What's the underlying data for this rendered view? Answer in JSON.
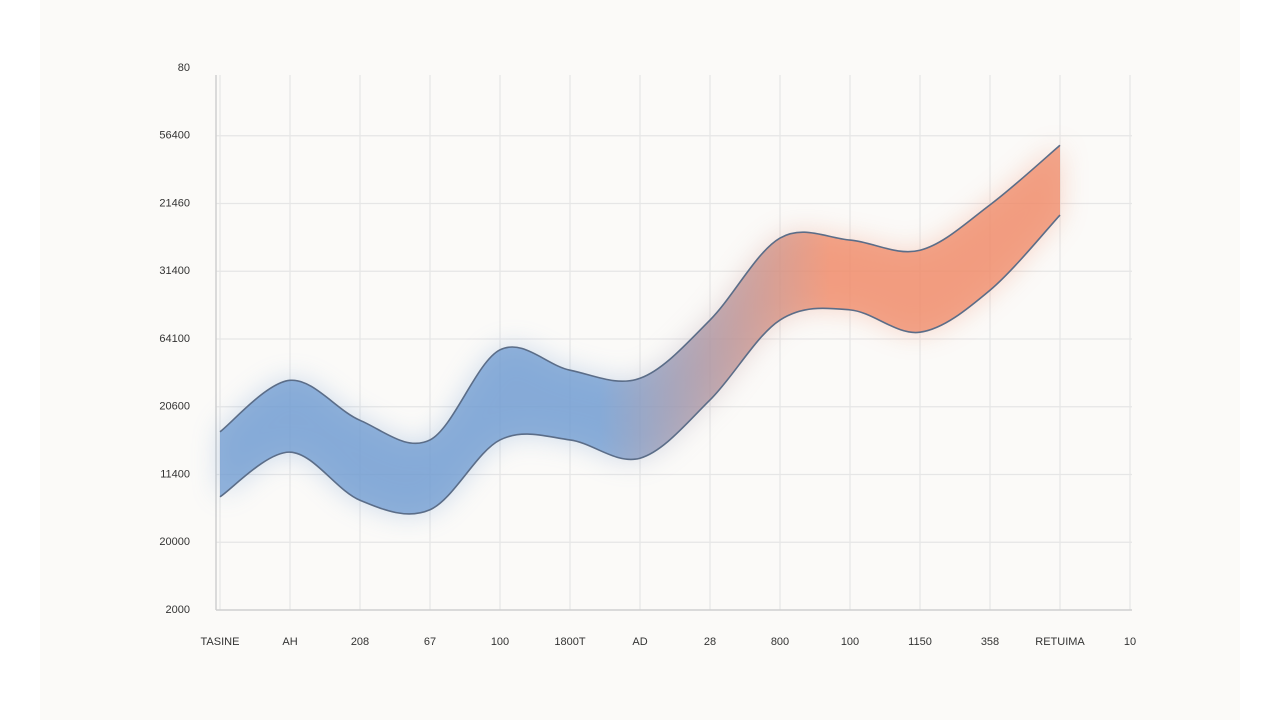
{
  "chart_data": {
    "type": "band",
    "categories": [
      "TASINE",
      "AH",
      "208",
      "67",
      "100",
      "1800T",
      "AD",
      "28",
      "800",
      "100",
      "1150",
      "358",
      "RETUIMA",
      "10"
    ],
    "high": [
      2.63,
      3.39,
      2.8,
      2.51,
      3.84,
      3.54,
      3.42,
      4.28,
      5.49,
      5.46,
      5.31,
      5.98,
      6.86,
      null
    ],
    "low": [
      1.67,
      2.33,
      1.62,
      1.48,
      2.51,
      2.51,
      2.24,
      3.1,
      4.28,
      4.43,
      4.1,
      4.72,
      5.83,
      null
    ],
    "colors": [
      "#6f9bd1",
      "#f08a68"
    ],
    "ylim": [
      0,
      8
    ],
    "yticks": [
      {
        "value": 0,
        "label": "2000"
      },
      {
        "value": 1,
        "label": "20000"
      },
      {
        "value": 2,
        "label": "11400"
      },
      {
        "value": 3,
        "label": "20600"
      },
      {
        "value": 4,
        "label": "64100"
      },
      {
        "value": 5,
        "label": "31400"
      },
      {
        "value": 6,
        "label": "21460"
      },
      {
        "value": 7,
        "label": "56400"
      },
      {
        "value": 8,
        "label": "80"
      }
    ],
    "grid": true
  }
}
